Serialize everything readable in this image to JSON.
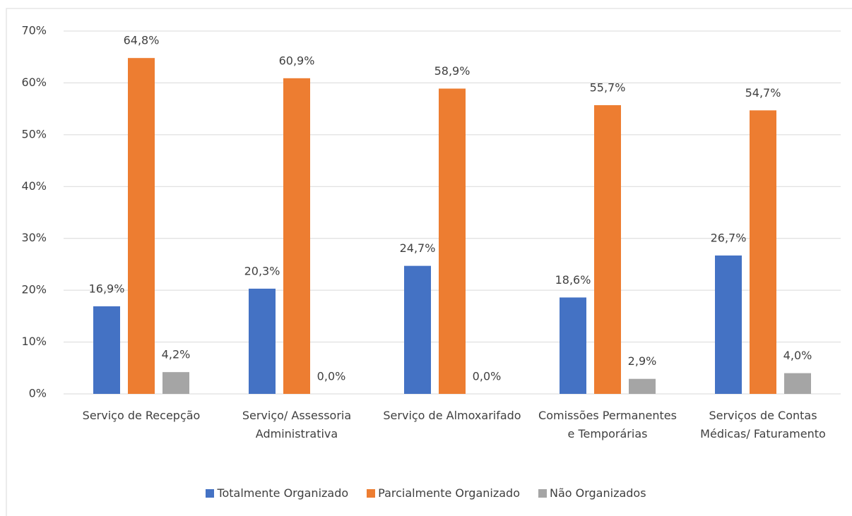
{
  "chart_data": {
    "type": "bar",
    "categories": [
      "Serviço de Recepção",
      "Serviço/ Assessoria Administrativa",
      "Serviço de Almoxarifado",
      "Comissões Permanentes e Temporárias",
      "Serviços de Contas Médicas/ Faturamento"
    ],
    "series": [
      {
        "name": "Totalmente Organizado",
        "color": "#4472c4",
        "values": [
          16.9,
          20.3,
          24.7,
          18.6,
          26.7
        ],
        "value_labels": [
          "16,9%",
          "20,3%",
          "24,7%",
          "18,6%",
          "26,7%"
        ]
      },
      {
        "name": "Parcialmente Organizado",
        "color": "#ed7d31",
        "values": [
          64.8,
          60.9,
          58.9,
          55.7,
          54.7
        ],
        "value_labels": [
          "64,8%",
          "60,9%",
          "58,9%",
          "55,7%",
          "54,7%"
        ]
      },
      {
        "name": "Não Organizados",
        "color": "#a5a5a5",
        "values": [
          4.2,
          0.0,
          0.0,
          2.9,
          4.0
        ],
        "value_labels": [
          "4,2%",
          "0,0%",
          "0,0%",
          "2,9%",
          "4,0%"
        ]
      }
    ],
    "ylim": [
      0,
      70
    ],
    "yticks": [
      {
        "value": 0,
        "label": "0%"
      },
      {
        "value": 10,
        "label": "10%"
      },
      {
        "value": 20,
        "label": "20%"
      },
      {
        "value": 30,
        "label": "30%"
      },
      {
        "value": 40,
        "label": "40%"
      },
      {
        "value": 50,
        "label": "50%"
      },
      {
        "value": 60,
        "label": "60%"
      },
      {
        "value": 70,
        "label": "70%"
      }
    ],
    "grid": true,
    "legend": "bottom"
  }
}
